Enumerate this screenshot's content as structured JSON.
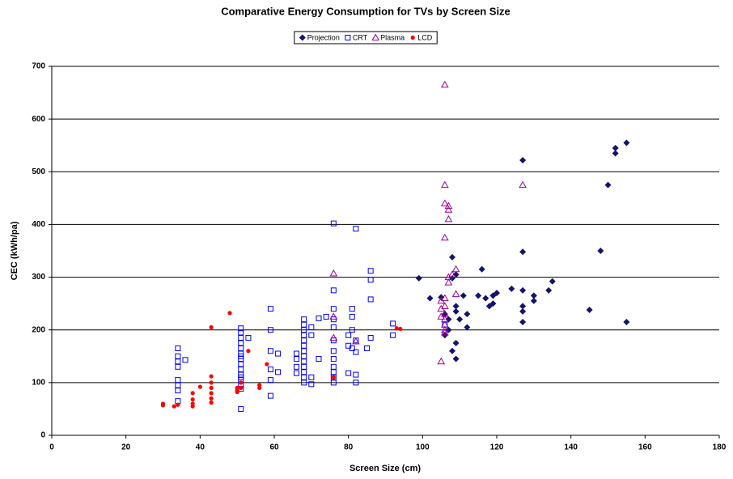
{
  "chart_data": {
    "type": "scatter",
    "title": "Comparative Energy Consumption for TVs by Screen Size",
    "x_label": "Screen Size (cm)",
    "y_label": "CEC (kWh/pa)",
    "xlim": [
      0,
      180
    ],
    "xticks": [
      0,
      20,
      40,
      60,
      80,
      100,
      120,
      140,
      160,
      180
    ],
    "ylim": [
      0,
      700
    ],
    "yticks": [
      0,
      100,
      200,
      300,
      400,
      500,
      600,
      700
    ],
    "grid": true,
    "legend": "top",
    "series": [
      {
        "name": "Projection",
        "color": "#14146e",
        "marker": "diamond",
        "x": [
          99,
          102,
          105,
          106,
          106,
          107,
          107,
          108,
          108,
          108,
          109,
          109,
          109,
          109,
          109,
          110,
          111,
          112,
          112,
          115,
          116,
          117,
          118,
          119,
          119,
          120,
          124,
          127,
          127,
          127,
          127,
          127,
          127,
          130,
          130,
          134,
          135,
          145,
          148,
          150,
          152,
          152,
          155,
          155
        ],
        "values": [
          298,
          260,
          262,
          230,
          190,
          220,
          200,
          338,
          298,
          160,
          175,
          145,
          305,
          245,
          235,
          220,
          265,
          230,
          205,
          265,
          315,
          260,
          245,
          250,
          265,
          270,
          278,
          522,
          348,
          275,
          245,
          235,
          215,
          265,
          255,
          275,
          292,
          238,
          350,
          475,
          545,
          535,
          555,
          215
        ]
      },
      {
        "name": "CRT",
        "color": "#0000ff",
        "marker": "square",
        "x": [
          34,
          34,
          34,
          34,
          34,
          34,
          34,
          34,
          36,
          51,
          51,
          51,
          51,
          51,
          51,
          51,
          51,
          51,
          51,
          51,
          51,
          51,
          51,
          51,
          51,
          53,
          59,
          59,
          59,
          59,
          59,
          59,
          61,
          61,
          66,
          66,
          66,
          66,
          68,
          68,
          68,
          68,
          68,
          68,
          68,
          68,
          68,
          68,
          68,
          68,
          68,
          70,
          70,
          70,
          70,
          72,
          72,
          74,
          76,
          76,
          76,
          76,
          76,
          76,
          76,
          76,
          76,
          76,
          76,
          76,
          80,
          80,
          80,
          81,
          81,
          81,
          81,
          82,
          82,
          82,
          82,
          82,
          85,
          86,
          86,
          86,
          86,
          92,
          92,
          106
        ],
        "values": [
          165,
          150,
          140,
          130,
          105,
          95,
          85,
          65,
          143,
          203,
          195,
          185,
          175,
          165,
          155,
          145,
          135,
          125,
          115,
          105,
          95,
          88,
          50,
          150,
          110,
          185,
          240,
          200,
          160,
          125,
          105,
          75,
          155,
          120,
          155,
          145,
          130,
          118,
          220,
          210,
          200,
          190,
          180,
          170,
          160,
          150,
          140,
          130,
          120,
          110,
          100,
          205,
          190,
          110,
          97,
          222,
          145,
          225,
          402,
          275,
          240,
          220,
          205,
          180,
          160,
          145,
          130,
          120,
          110,
          100,
          190,
          170,
          118,
          240,
          225,
          200,
          165,
          392,
          180,
          158,
          115,
          100,
          165,
          312,
          295,
          258,
          185,
          212,
          190,
          210
        ]
      },
      {
        "name": "Plasma",
        "color": "#990099",
        "marker": "triangle",
        "x": [
          76,
          76,
          76,
          82,
          105,
          105,
          105,
          106,
          106,
          106,
          106,
          106,
          106,
          106,
          106,
          106,
          106,
          107,
          107,
          107,
          107,
          107,
          108,
          109,
          109,
          127,
          105,
          106
        ],
        "values": [
          307,
          225,
          185,
          178,
          140,
          255,
          240,
          665,
          475,
          440,
          375,
          260,
          245,
          230,
          220,
          210,
          200,
          435,
          428,
          410,
          300,
          290,
          305,
          315,
          268,
          475,
          225,
          195
        ]
      },
      {
        "name": "LCD",
        "color": "#ff0000",
        "marker": "circle",
        "x": [
          30,
          30,
          33,
          34,
          38,
          38,
          38,
          38,
          40,
          43,
          43,
          43,
          43,
          43,
          43,
          43,
          48,
          50,
          50,
          50,
          51,
          51,
          53,
          56,
          56,
          58,
          76,
          93,
          94
        ],
        "values": [
          60,
          57,
          55,
          58,
          80,
          68,
          60,
          55,
          92,
          205,
          112,
          100,
          90,
          80,
          70,
          62,
          232,
          90,
          85,
          82,
          90,
          100,
          160,
          95,
          90,
          135,
          110,
          203,
          202
        ]
      }
    ]
  }
}
